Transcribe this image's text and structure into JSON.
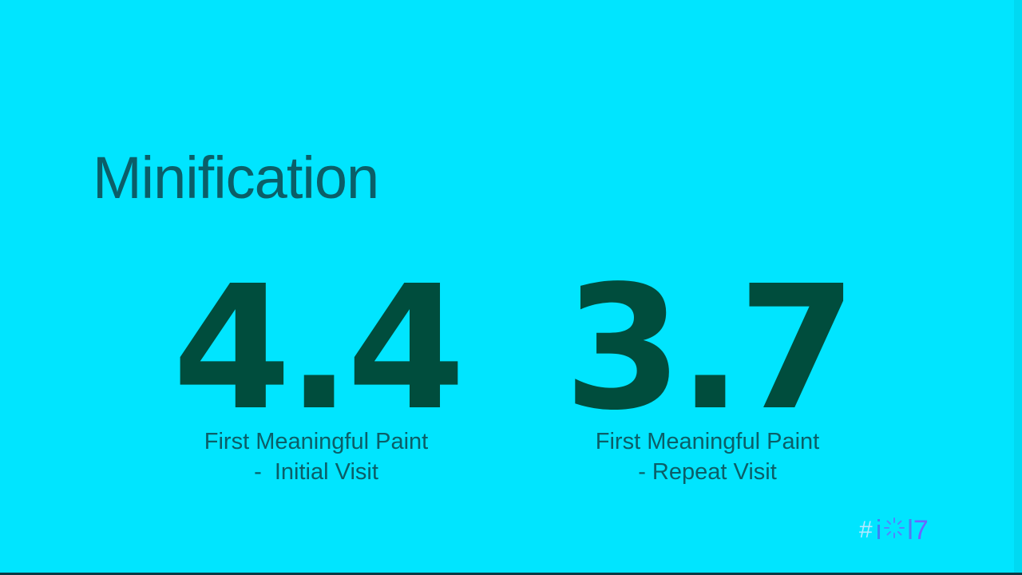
{
  "slide": {
    "title": "Minification",
    "metrics": [
      {
        "value": "4.4",
        "label_line1": "First Meaningful Paint",
        "label_line2": "-  Initial Visit"
      },
      {
        "value": "3.7",
        "label_line1": "First Meaningful Paint",
        "label_line2": "- Repeat Visit"
      }
    ]
  },
  "logo": {
    "hash": "#",
    "i": "i",
    "one": "l",
    "seven": "7"
  },
  "colors": {
    "background": "#00e5ff",
    "metric_value": "#004d3d",
    "text": "#0b5e68"
  }
}
